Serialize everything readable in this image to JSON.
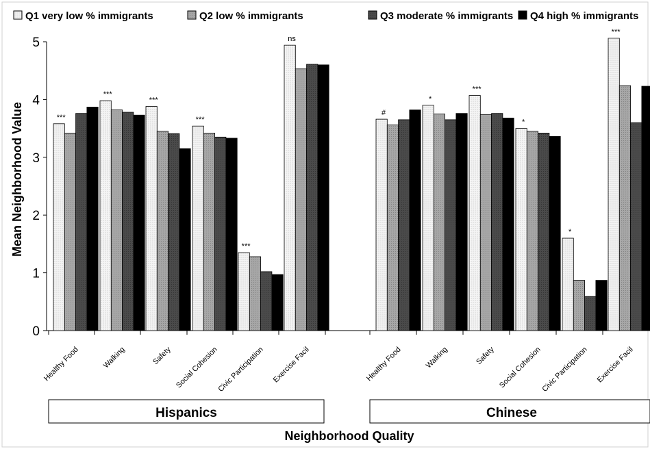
{
  "chart_data": {
    "type": "bar",
    "xlabel": "Neighborhood Quality",
    "ylabel": "Mean Neighborhood Value",
    "ylim": [
      0,
      5
    ],
    "yticks": [
      0,
      1,
      2,
      3,
      4,
      5
    ],
    "grid": false,
    "legend_position": "top",
    "series": [
      {
        "name": "Q1 very low % immigrants",
        "color": "#f4f4f4"
      },
      {
        "name": "Q2 low % immigrants",
        "color": "#a6a6a6"
      },
      {
        "name": "Q3 moderate % immigrants",
        "color": "#4a4a4a"
      },
      {
        "name": "Q4 high % immigrants",
        "color": "#000000"
      }
    ],
    "groups": [
      {
        "name": "Hispanics",
        "categories": [
          "Healthy Food",
          "Walking",
          "Safety",
          "Social Cohesion",
          "Civic Participation",
          "Exercise Facil"
        ],
        "values": [
          [
            3.58,
            3.42,
            3.76,
            3.87
          ],
          [
            3.98,
            3.82,
            3.78,
            3.73
          ],
          [
            3.88,
            3.45,
            3.41,
            3.15
          ],
          [
            3.54,
            3.42,
            3.35,
            3.33
          ],
          [
            1.35,
            1.28,
            1.02,
            0.97
          ],
          [
            4.94,
            4.53,
            4.61,
            4.6
          ]
        ],
        "annotations": [
          "***",
          "***",
          "***",
          "***",
          "***",
          "ns"
        ]
      },
      {
        "name": "Chinese",
        "categories": [
          "Healthy Food",
          "Walking",
          "Safety",
          "Social Cohesion",
          "Civic Participation",
          "Exercise Facil"
        ],
        "values": [
          [
            3.66,
            3.56,
            3.65,
            3.82
          ],
          [
            3.9,
            3.75,
            3.65,
            3.76
          ],
          [
            4.07,
            3.74,
            3.76,
            3.68
          ],
          [
            3.5,
            3.45,
            3.42,
            3.36
          ],
          [
            1.6,
            0.87,
            0.59,
            0.87
          ],
          [
            5.06,
            4.24,
            3.6,
            4.23
          ]
        ],
        "annotations": [
          "#",
          "*",
          "***",
          "*",
          "*",
          "***"
        ]
      }
    ]
  }
}
